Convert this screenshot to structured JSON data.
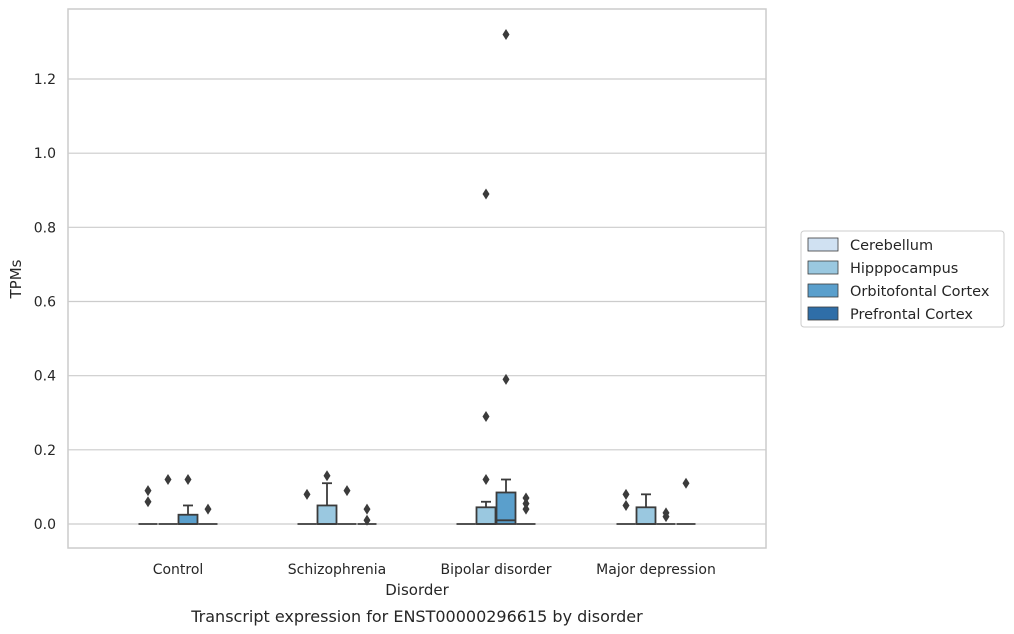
{
  "chart_data": {
    "type": "box",
    "xlabel": "Disorder",
    "ylabel": "TPMs",
    "caption": "Transcript expression for ENST00000296615 by disorder",
    "ylim": [
      -0.066,
      1.38
    ],
    "yticks": [
      "0.0",
      "0.2",
      "0.4",
      "0.6",
      "0.8",
      "1.0",
      "1.2"
    ],
    "grid": true,
    "legend_position": "right",
    "categories": [
      "Control",
      "Schizophrenia",
      "Bipolar disorder",
      "Major depression"
    ],
    "series": [
      {
        "name": "Cerebellum",
        "color": "#d0e1f2",
        "boxes": [
          {
            "q1": 0.0,
            "median": 0.0,
            "q3": 0.0,
            "whisker_low": 0.0,
            "whisker_high": 0.0,
            "outliers": [
              0.06,
              0.09
            ]
          },
          {
            "q1": 0.0,
            "median": 0.0,
            "q3": 0.0,
            "whisker_low": 0.0,
            "whisker_high": 0.0,
            "outliers": [
              0.08
            ]
          },
          {
            "q1": 0.0,
            "median": 0.0,
            "q3": 0.0,
            "whisker_low": 0.0,
            "whisker_high": 0.0,
            "outliers": []
          },
          {
            "q1": 0.0,
            "median": 0.0,
            "q3": 0.0,
            "whisker_low": 0.0,
            "whisker_high": 0.0,
            "outliers": [
              0.05,
              0.08
            ]
          }
        ]
      },
      {
        "name": "Hipppocampus",
        "color": "#9ac8e0",
        "boxes": [
          {
            "q1": 0.0,
            "median": 0.0,
            "q3": 0.0,
            "whisker_low": 0.0,
            "whisker_high": 0.0,
            "outliers": [
              0.12
            ]
          },
          {
            "q1": 0.0,
            "median": 0.0,
            "q3": 0.05,
            "whisker_low": 0.0,
            "whisker_high": 0.11,
            "outliers": [
              0.13
            ]
          },
          {
            "q1": 0.0,
            "median": 0.0,
            "q3": 0.045,
            "whisker_low": 0.0,
            "whisker_high": 0.06,
            "outliers": [
              0.12,
              0.29,
              0.89
            ]
          },
          {
            "q1": 0.0,
            "median": 0.0,
            "q3": 0.045,
            "whisker_low": 0.0,
            "whisker_high": 0.08,
            "outliers": []
          }
        ]
      },
      {
        "name": "Orbitofontal Cortex",
        "color": "#5a9fcc",
        "boxes": [
          {
            "q1": 0.0,
            "median": 0.0,
            "q3": 0.025,
            "whisker_low": 0.0,
            "whisker_high": 0.05,
            "outliers": [
              0.12
            ]
          },
          {
            "q1": 0.0,
            "median": 0.0,
            "q3": 0.0,
            "whisker_low": 0.0,
            "whisker_high": 0.0,
            "outliers": [
              0.09
            ]
          },
          {
            "q1": 0.0,
            "median": 0.01,
            "q3": 0.085,
            "whisker_low": 0.0,
            "whisker_high": 0.12,
            "outliers": [
              0.39,
              1.32
            ]
          },
          {
            "q1": 0.0,
            "median": 0.0,
            "q3": 0.0,
            "whisker_low": 0.0,
            "whisker_high": 0.0,
            "outliers": [
              0.02,
              0.03
            ]
          }
        ]
      },
      {
        "name": "Prefrontal Cortex",
        "color": "#2f6ea8",
        "boxes": [
          {
            "q1": 0.0,
            "median": 0.0,
            "q3": 0.0,
            "whisker_low": 0.0,
            "whisker_high": 0.0,
            "outliers": [
              0.04
            ]
          },
          {
            "q1": 0.0,
            "median": 0.0,
            "q3": 0.0,
            "whisker_low": 0.0,
            "whisker_high": 0.0,
            "outliers": [
              0.01,
              0.04
            ]
          },
          {
            "q1": 0.0,
            "median": 0.0,
            "q3": 0.0,
            "whisker_low": 0.0,
            "whisker_high": 0.0,
            "outliers": [
              0.04,
              0.055,
              0.07
            ]
          },
          {
            "q1": 0.0,
            "median": 0.0,
            "q3": 0.0,
            "whisker_low": 0.0,
            "whisker_high": 0.0,
            "outliers": [
              0.11
            ]
          }
        ]
      }
    ]
  }
}
